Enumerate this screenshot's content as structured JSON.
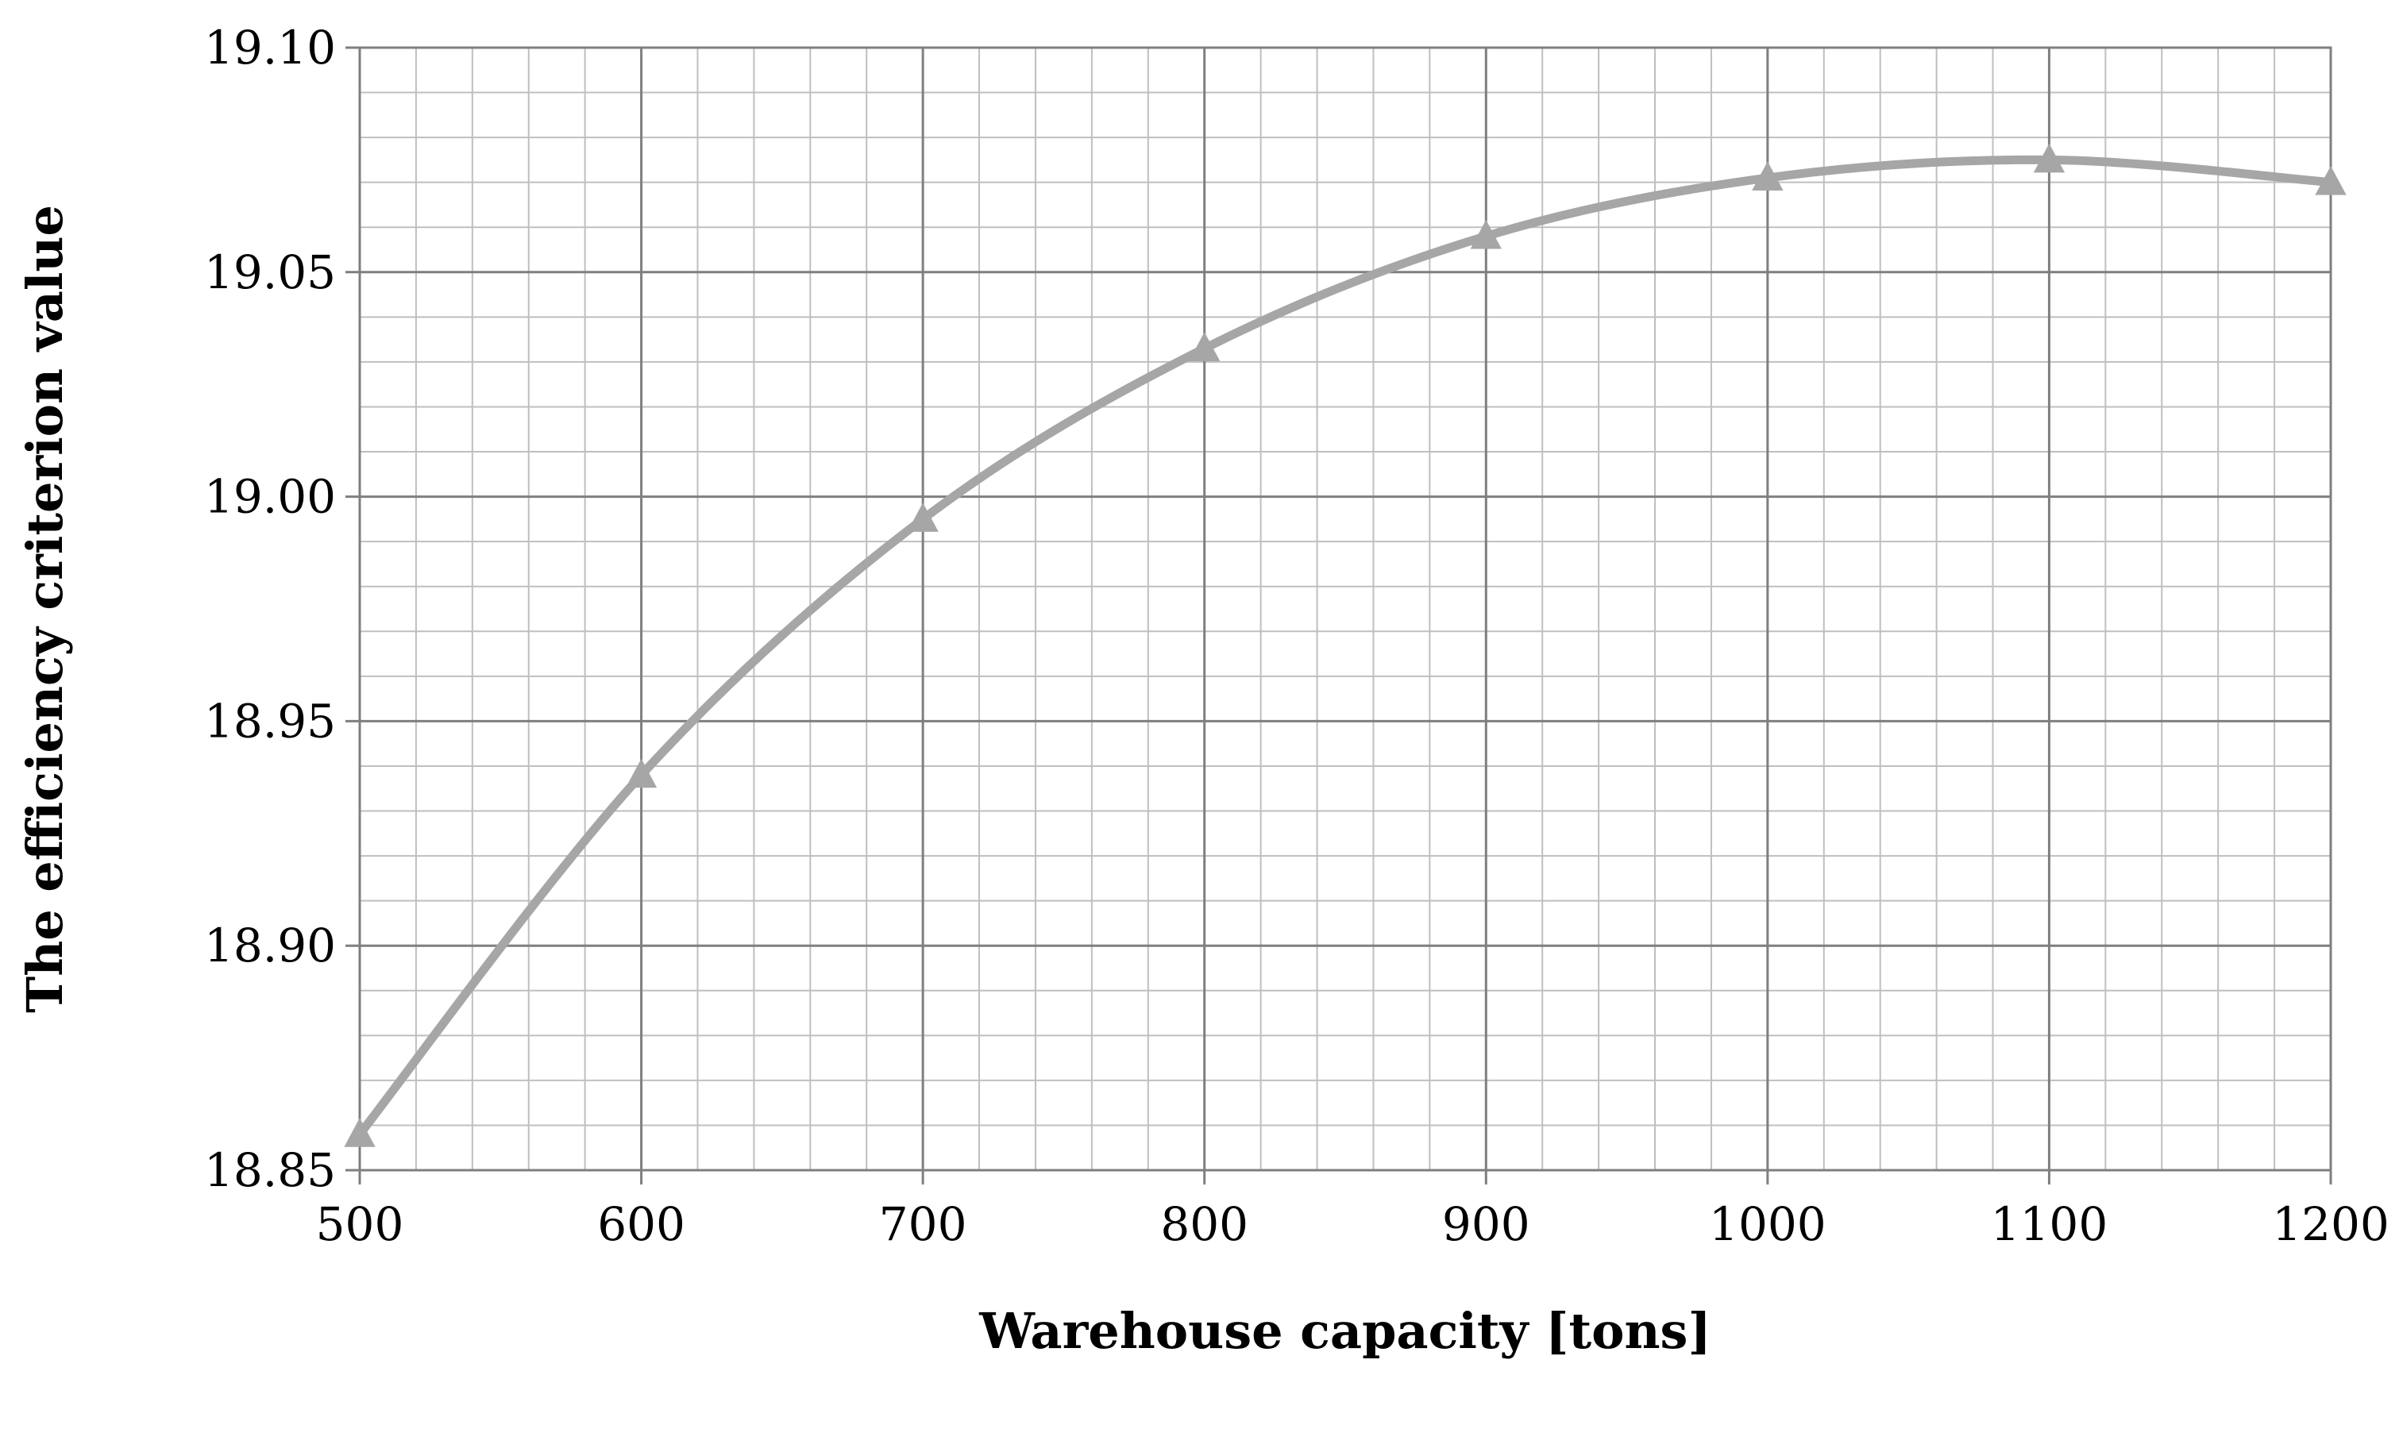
{
  "chart_data": {
    "type": "line",
    "title": "",
    "xlabel": "Warehouse capacity [tons]",
    "ylabel": "The efficiency criterion value",
    "xlim": [
      500,
      1200
    ],
    "ylim": [
      18.85,
      19.1
    ],
    "x_ticks": [
      "500",
      "600",
      "700",
      "800",
      "900",
      "1000",
      "1100",
      "1200"
    ],
    "y_ticks": [
      "18.85",
      "18.90",
      "18.95",
      "19.00",
      "19.05",
      "19.10"
    ],
    "x_minor_step": 20,
    "y_minor_step": 0.01,
    "grid": true,
    "legend": "none",
    "series": [
      {
        "marker": "triangle",
        "color": "#a6a6a6",
        "x": [
          500,
          600,
          700,
          800,
          900,
          1000,
          1100,
          1200
        ],
        "values": [
          18.858,
          18.938,
          18.995,
          19.033,
          19.058,
          19.071,
          19.075,
          19.07
        ]
      }
    ],
    "colors": {
      "line": "#a6a6a6",
      "grid_major": "#7f7f7f",
      "grid_minor": "#bfbfbf"
    }
  }
}
